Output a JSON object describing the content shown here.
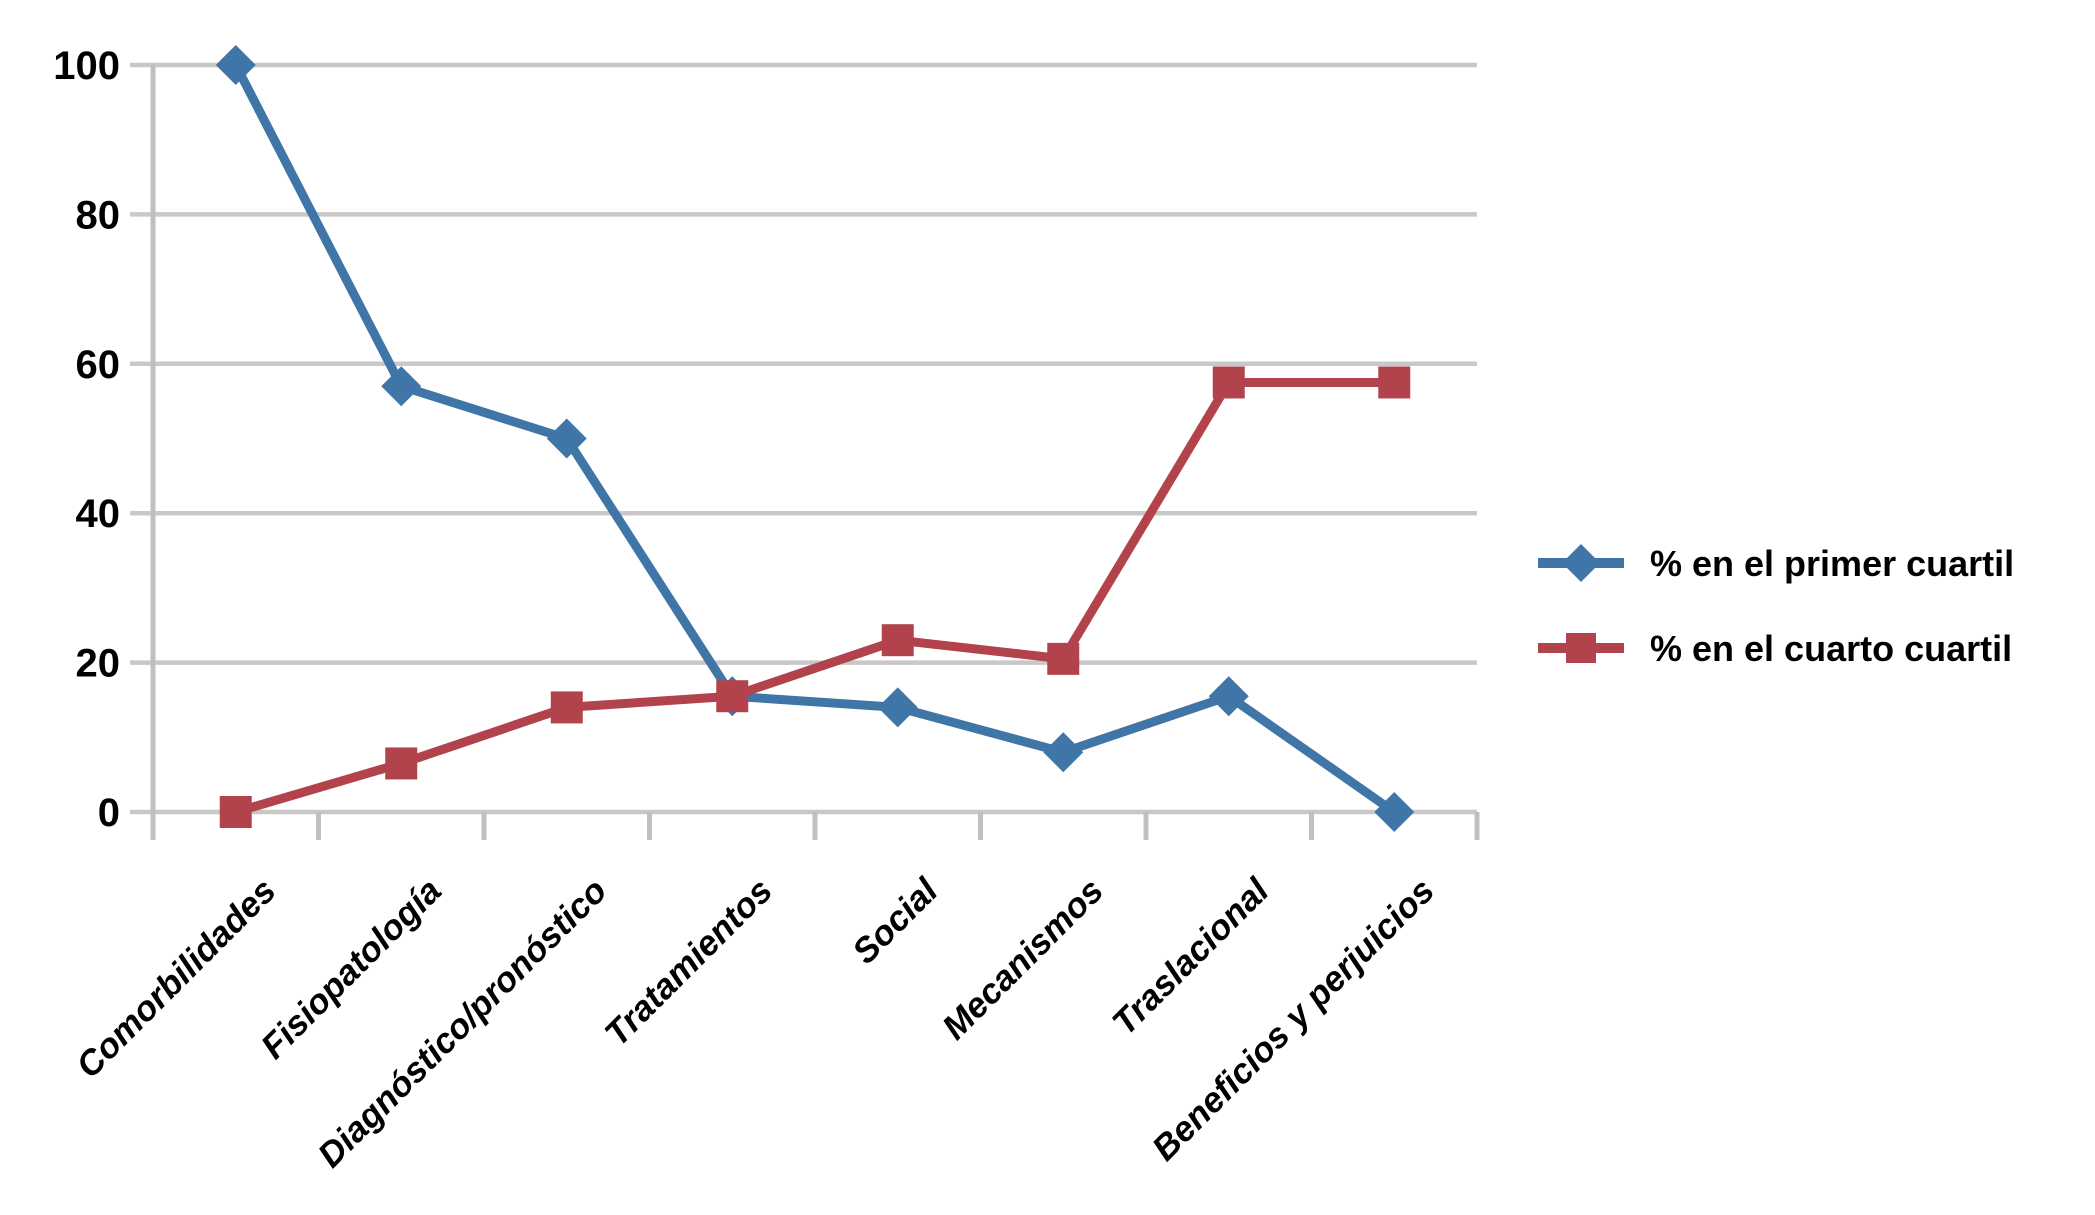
{
  "chart_data": {
    "type": "line",
    "title": "",
    "xlabel": "",
    "ylabel": "",
    "categories": [
      "Comorbilidades",
      "Fisiopatología",
      "Diagnóstico/pronóstico",
      "Tratamientos",
      "Social",
      "Mecanismos",
      "Traslacional",
      "Beneficios y perjuicios"
    ],
    "series": [
      {
        "name": "% en el primer cuartil",
        "marker": "diamond",
        "color": "#4075A7",
        "values": [
          100,
          57,
          50,
          15.5,
          14,
          8,
          15.5,
          0
        ]
      },
      {
        "name": "% en el cuarto cuartil",
        "marker": "square",
        "color": "#B2434C",
        "values": [
          0,
          6.5,
          14,
          15.5,
          23,
          20.5,
          57.5,
          57.5
        ]
      }
    ],
    "ylim": [
      0,
      100
    ],
    "yticks": [
      0,
      20,
      40,
      60,
      80,
      100
    ],
    "grid": "horizontal",
    "gridline_color": "#C8C8C8",
    "axis_color": "#BFBFBF",
    "label_color": "#000000",
    "background_color": "#FFFFFF",
    "legend_position": "right",
    "x_label_rotation_deg": -45
  }
}
